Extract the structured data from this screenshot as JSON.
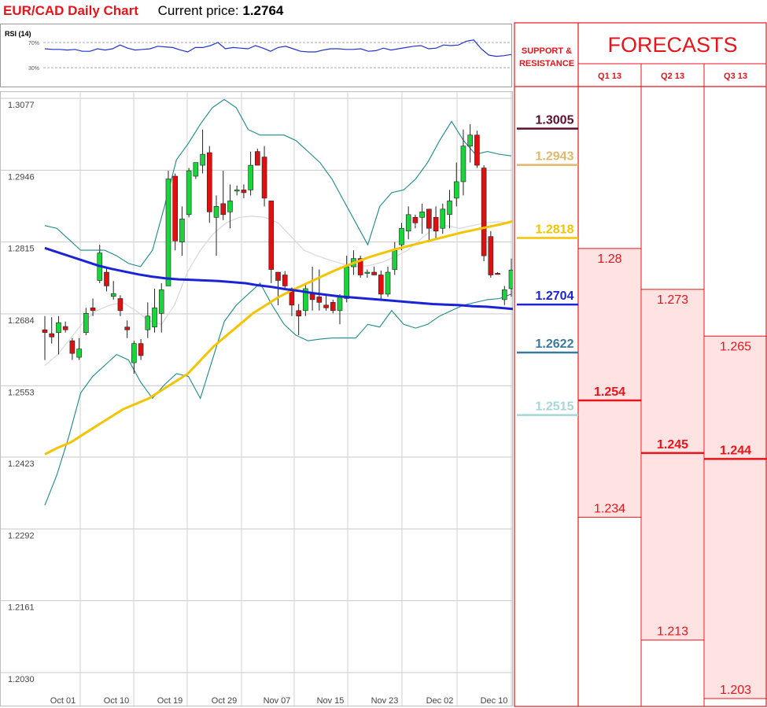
{
  "header": {
    "title": "EUR/CAD Daily Chart",
    "current_price_label": "Current price:",
    "current_price": "1.2764"
  },
  "rsi": {
    "label": "RSI (14)",
    "level_high": "70%",
    "level_low": "30%",
    "values": [
      60,
      59,
      59,
      58,
      59,
      56,
      56,
      60,
      58,
      60,
      66,
      61,
      58,
      59,
      60,
      64,
      63,
      62,
      58,
      55,
      62,
      62,
      65,
      70,
      60,
      62,
      61,
      60,
      65,
      61,
      56,
      62,
      64,
      60,
      56,
      55,
      55,
      58,
      60,
      60,
      59,
      59,
      60,
      56,
      57,
      61,
      58,
      60,
      62,
      64,
      65,
      60,
      61,
      66,
      65,
      66,
      72,
      74,
      60,
      50,
      48,
      49,
      51
    ]
  },
  "forecast_panel": {
    "sr_title_line1": "SUPPORT &",
    "sr_title_line2": "RESISTANCE",
    "forecasts_title": "FORECASTS",
    "quarters": [
      "Q1 13",
      "Q2 13",
      "Q3 13"
    ],
    "levels": [
      {
        "label": "1.3005",
        "color": "#5c0f2b"
      },
      {
        "label": "1.2943",
        "color": "#e0b86c"
      },
      {
        "label": "1.2818",
        "color": "#f5c400"
      },
      {
        "label": "1.2704",
        "color": "#1a24d6"
      },
      {
        "label": "1.2622",
        "color": "#3a7aa0"
      },
      {
        "label": "1.2515",
        "color": "#a7d6d8"
      }
    ],
    "forecasts": [
      {
        "quarter": "Q1 13",
        "high": "1.28",
        "mid": "1.254",
        "low": "1.234"
      },
      {
        "quarter": "Q2 13",
        "high": "1.273",
        "mid": "1.245",
        "low": "1.213"
      },
      {
        "quarter": "Q3 13",
        "high": "1.265",
        "mid": "1.244",
        "low": "1.203"
      }
    ]
  },
  "chart_data": {
    "type": "candlestick",
    "title": "EUR/CAD Daily Chart",
    "ylim": [
      1.203,
      1.3077
    ],
    "y_ticks": [
      "1.3077",
      "1.2946",
      "1.2815",
      "1.2684",
      "1.2553",
      "1.2423",
      "1.2292",
      "1.2161",
      "1.2030"
    ],
    "x_ticks": [
      "Oct 01",
      "Oct 10",
      "Oct 19",
      "Oct 29",
      "Nov 07",
      "Nov 15",
      "Nov 23",
      "Dec 02",
      "Dec 10"
    ],
    "candles": [
      {
        "o": 1.2655,
        "h": 1.268,
        "l": 1.26,
        "c": 1.265
      },
      {
        "o": 1.2648,
        "h": 1.2678,
        "l": 1.263,
        "c": 1.2642
      },
      {
        "o": 1.265,
        "h": 1.268,
        "l": 1.261,
        "c": 1.2668
      },
      {
        "o": 1.2661,
        "h": 1.267,
        "l": 1.265,
        "c": 1.2655
      },
      {
        "o": 1.2635,
        "h": 1.264,
        "l": 1.26,
        "c": 1.2612
      },
      {
        "o": 1.2605,
        "h": 1.264,
        "l": 1.26,
        "c": 1.262
      },
      {
        "o": 1.265,
        "h": 1.2695,
        "l": 1.2645,
        "c": 1.2685
      },
      {
        "o": 1.2695,
        "h": 1.2712,
        "l": 1.268,
        "c": 1.269
      },
      {
        "o": 1.2745,
        "h": 1.281,
        "l": 1.274,
        "c": 1.2795
      },
      {
        "o": 1.276,
        "h": 1.2768,
        "l": 1.2725,
        "c": 1.2735
      },
      {
        "o": 1.2716,
        "h": 1.2744,
        "l": 1.271,
        "c": 1.2721
      },
      {
        "o": 1.2712,
        "h": 1.2718,
        "l": 1.268,
        "c": 1.269
      },
      {
        "o": 1.266,
        "h": 1.2672,
        "l": 1.264,
        "c": 1.2655
      },
      {
        "o": 1.2595,
        "h": 1.2635,
        "l": 1.2575,
        "c": 1.263
      },
      {
        "o": 1.263,
        "h": 1.2638,
        "l": 1.26,
        "c": 1.2608
      },
      {
        "o": 1.2655,
        "h": 1.2705,
        "l": 1.264,
        "c": 1.268
      },
      {
        "o": 1.266,
        "h": 1.273,
        "l": 1.265,
        "c": 1.2695
      },
      {
        "o": 1.2685,
        "h": 1.274,
        "l": 1.265,
        "c": 1.2728
      },
      {
        "o": 1.2735,
        "h": 1.2945,
        "l": 1.2735,
        "c": 1.293
      },
      {
        "o": 1.2935,
        "h": 1.294,
        "l": 1.28,
        "c": 1.2817
      },
      {
        "o": 1.2815,
        "h": 1.288,
        "l": 1.279,
        "c": 1.2857
      },
      {
        "o": 1.2865,
        "h": 1.295,
        "l": 1.286,
        "c": 1.2945
      },
      {
        "o": 1.2935,
        "h": 1.296,
        "l": 1.293,
        "c": 1.296
      },
      {
        "o": 1.2955,
        "h": 1.302,
        "l": 1.294,
        "c": 1.2975
      },
      {
        "o": 1.2978,
        "h": 1.299,
        "l": 1.285,
        "c": 1.287
      },
      {
        "o": 1.286,
        "h": 1.29,
        "l": 1.279,
        "c": 1.288
      },
      {
        "o": 1.2885,
        "h": 1.2945,
        "l": 1.2855,
        "c": 1.2865
      },
      {
        "o": 1.287,
        "h": 1.292,
        "l": 1.284,
        "c": 1.289
      },
      {
        "o": 1.291,
        "h": 1.2918,
        "l": 1.29,
        "c": 1.291
      },
      {
        "o": 1.291,
        "h": 1.292,
        "l": 1.2895,
        "c": 1.2905
      },
      {
        "o": 1.291,
        "h": 1.298,
        "l": 1.29,
        "c": 1.2955
      },
      {
        "o": 1.298,
        "h": 1.2985,
        "l": 1.296,
        "c": 1.2955
      },
      {
        "o": 1.297,
        "h": 1.299,
        "l": 1.288,
        "c": 1.2895
      },
      {
        "o": 1.289,
        "h": 1.289,
        "l": 1.274,
        "c": 1.2765
      },
      {
        "o": 1.276,
        "h": 1.276,
        "l": 1.27,
        "c": 1.2745
      },
      {
        "o": 1.2755,
        "h": 1.2762,
        "l": 1.273,
        "c": 1.2735
      },
      {
        "o": 1.273,
        "h": 1.2732,
        "l": 1.268,
        "c": 1.27
      },
      {
        "o": 1.269,
        "h": 1.2702,
        "l": 1.2645,
        "c": 1.268
      },
      {
        "o": 1.269,
        "h": 1.274,
        "l": 1.268,
        "c": 1.273
      },
      {
        "o": 1.272,
        "h": 1.277,
        "l": 1.269,
        "c": 1.271
      },
      {
        "o": 1.2715,
        "h": 1.2765,
        "l": 1.269,
        "c": 1.2705
      },
      {
        "o": 1.27,
        "h": 1.272,
        "l": 1.269,
        "c": 1.2695
      },
      {
        "o": 1.2705,
        "h": 1.271,
        "l": 1.2685,
        "c": 1.269
      },
      {
        "o": 1.269,
        "h": 1.272,
        "l": 1.2665,
        "c": 1.2715
      },
      {
        "o": 1.2712,
        "h": 1.279,
        "l": 1.2705,
        "c": 1.277
      },
      {
        "o": 1.277,
        "h": 1.28,
        "l": 1.2755,
        "c": 1.2785
      },
      {
        "o": 1.2785,
        "h": 1.279,
        "l": 1.275,
        "c": 1.2755
      },
      {
        "o": 1.276,
        "h": 1.2765,
        "l": 1.275,
        "c": 1.276
      },
      {
        "o": 1.276,
        "h": 1.277,
        "l": 1.2755,
        "c": 1.2755
      },
      {
        "o": 1.2755,
        "h": 1.2763,
        "l": 1.271,
        "c": 1.272
      },
      {
        "o": 1.272,
        "h": 1.277,
        "l": 1.2715,
        "c": 1.276
      },
      {
        "o": 1.2765,
        "h": 1.2815,
        "l": 1.2755,
        "c": 1.28
      },
      {
        "o": 1.281,
        "h": 1.285,
        "l": 1.28,
        "c": 1.284
      },
      {
        "o": 1.2835,
        "h": 1.288,
        "l": 1.282,
        "c": 1.2865
      },
      {
        "o": 1.286,
        "h": 1.2865,
        "l": 1.284,
        "c": 1.285
      },
      {
        "o": 1.286,
        "h": 1.2885,
        "l": 1.283,
        "c": 1.287
      },
      {
        "o": 1.2875,
        "h": 1.2875,
        "l": 1.2815,
        "c": 1.284
      },
      {
        "o": 1.286,
        "h": 1.288,
        "l": 1.282,
        "c": 1.2835
      },
      {
        "o": 1.284,
        "h": 1.2885,
        "l": 1.283,
        "c": 1.2875
      },
      {
        "o": 1.2865,
        "h": 1.291,
        "l": 1.284,
        "c": 1.289
      },
      {
        "o": 1.2895,
        "h": 1.296,
        "l": 1.288,
        "c": 1.2925
      },
      {
        "o": 1.2925,
        "h": 1.302,
        "l": 1.29,
        "c": 1.299
      },
      {
        "o": 1.299,
        "h": 1.303,
        "l": 1.296,
        "c": 1.301
      },
      {
        "o": 1.301,
        "h": 1.3018,
        "l": 1.295,
        "c": 1.2955
      },
      {
        "o": 1.295,
        "h": 1.2955,
        "l": 1.278,
        "c": 1.279
      },
      {
        "o": 1.2825,
        "h": 1.2835,
        "l": 1.275,
        "c": 1.2755
      },
      {
        "o": 1.2758,
        "h": 1.276,
        "l": 1.2756,
        "c": 1.2757
      },
      {
        "o": 1.271,
        "h": 1.2735,
        "l": 1.27,
        "c": 1.2728
      },
      {
        "o": 1.273,
        "h": 1.2785,
        "l": 1.2715,
        "c": 1.2764
      }
    ],
    "series": [
      {
        "name": "",
        "kind": "ma_fast",
        "color": "#f5c400",
        "values": [
          1.2428,
          1.244,
          1.245,
          1.2465,
          1.248,
          1.2495,
          1.251,
          1.252,
          1.253,
          1.2545,
          1.256,
          1.2575,
          1.26,
          1.2625,
          1.2645,
          1.2665,
          1.2685,
          1.27,
          1.2715,
          1.2727,
          1.2738,
          1.2749,
          1.276,
          1.277,
          1.2779,
          1.2788,
          1.2795,
          1.2802,
          1.2808,
          1.2814,
          1.282,
          1.2826,
          1.2832,
          1.2837,
          1.2842,
          1.2847,
          1.2853
        ]
      },
      {
        "name": "",
        "kind": "ma_slow",
        "color": "#1a24d6",
        "values": [
          1.2804,
          1.2796,
          1.2788,
          1.278,
          1.2772,
          1.2766,
          1.2761,
          1.2756,
          1.2752,
          1.2749,
          1.2747,
          1.2746,
          1.2745,
          1.2744,
          1.2742,
          1.274,
          1.2736,
          1.2733,
          1.2729,
          1.2726,
          1.2722,
          1.2719,
          1.2716,
          1.2714,
          1.2712,
          1.271,
          1.2708,
          1.2706,
          1.2704,
          1.2702,
          1.2701,
          1.27,
          1.2698,
          1.2697,
          1.2695,
          1.2693
        ]
      },
      {
        "name": "",
        "kind": "bollinger_upper",
        "color": "#1a8a8a",
        "values": [
          1.2845,
          1.284,
          1.282,
          1.28,
          1.28,
          1.28,
          1.279,
          1.2776,
          1.277,
          1.28,
          1.288,
          1.2965,
          1.2995,
          1.303,
          1.306,
          1.3075,
          1.306,
          1.302,
          1.301,
          1.301,
          1.301,
          1.3,
          1.298,
          1.296,
          1.293,
          1.289,
          1.285,
          1.281,
          1.288,
          1.2905,
          1.291,
          1.293,
          1.296,
          1.3,
          1.3035,
          1.3,
          1.2975,
          1.298,
          1.2975,
          1.2972
        ]
      },
      {
        "name": "",
        "kind": "bollinger_lower",
        "color": "#1a8a8a",
        "values": [
          1.2335,
          1.239,
          1.246,
          1.254,
          1.257,
          1.259,
          1.261,
          1.26,
          1.256,
          1.253,
          1.2555,
          1.2575,
          1.257,
          1.253,
          1.26,
          1.267,
          1.27,
          1.272,
          1.274,
          1.27,
          1.2665,
          1.2645,
          1.2635,
          1.2638,
          1.264,
          1.264,
          1.264,
          1.2665,
          1.266,
          1.269,
          1.2665,
          1.2658,
          1.2665,
          1.268,
          1.269,
          1.27,
          1.2705,
          1.271,
          1.2712,
          1.272
        ]
      },
      {
        "name": "",
        "kind": "bollinger_middle",
        "color": "#d8d8d8",
        "values": [
          1.259,
          1.261,
          1.264,
          1.267,
          1.269,
          1.27,
          1.2705,
          1.269,
          1.2672,
          1.2665,
          1.27,
          1.276,
          1.28,
          1.283,
          1.285,
          1.286,
          1.2862,
          1.286,
          1.285,
          1.2825,
          1.28,
          1.279,
          1.2782,
          1.2775,
          1.277,
          1.2772,
          1.2778,
          1.2788,
          1.28,
          1.282,
          1.284,
          1.2845,
          1.284,
          1.2845,
          1.285,
          1.2852,
          1.285
        ]
      }
    ]
  }
}
